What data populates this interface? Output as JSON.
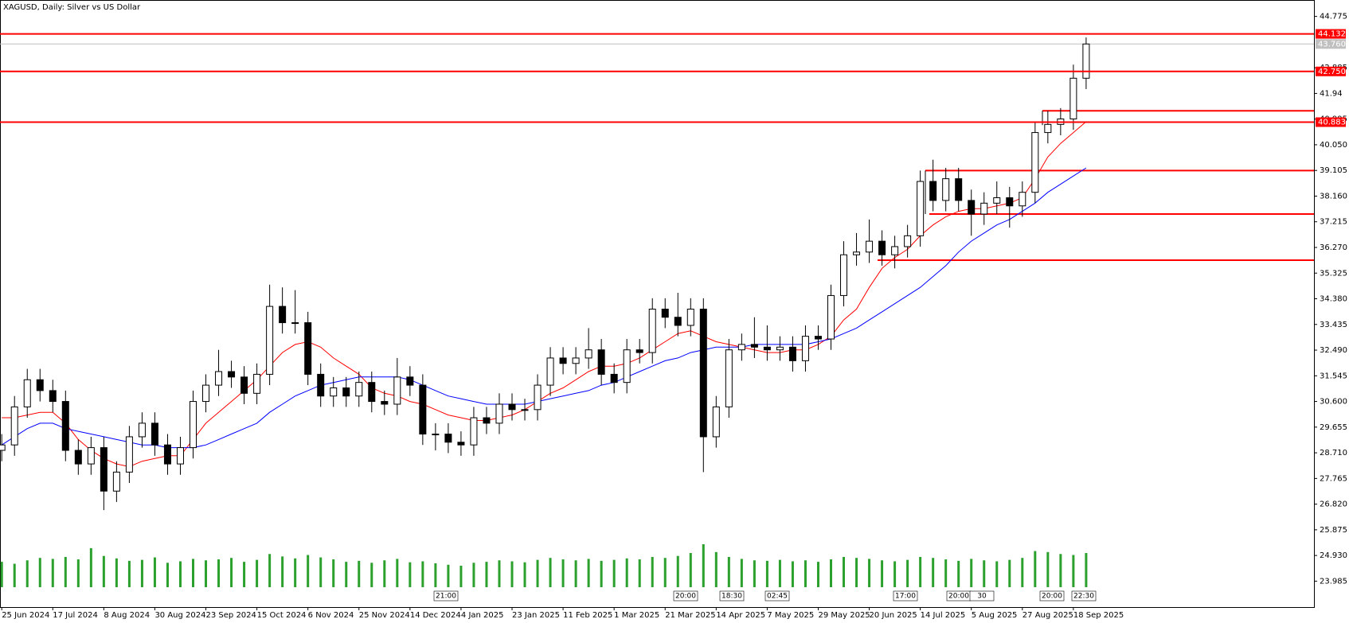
{
  "chart_data": {
    "type": "candlestick",
    "title": "XAGUSD, Daily:  Silver vs US Dollar",
    "categories": [
      "25 Jun 2024",
      null,
      null,
      null,
      "17 Jul 2024",
      null,
      null,
      null,
      "8 Aug 2024",
      null,
      null,
      null,
      "30 Aug 2024",
      null,
      null,
      null,
      "23 Sep 2024",
      null,
      null,
      null,
      "15 Oct 2024",
      null,
      null,
      null,
      "6 Nov 2024",
      null,
      null,
      null,
      "25 Nov 2024",
      null,
      null,
      null,
      "14 Dec 2024",
      null,
      null,
      null,
      "4 Jan 2025",
      null,
      null,
      null,
      "23 Jan 2025",
      null,
      null,
      null,
      "11 Feb 2025",
      null,
      null,
      null,
      "1 Mar 2025",
      null,
      null,
      null,
      "21 Mar 2025",
      null,
      null,
      null,
      "14 Apr 2025",
      null,
      null,
      null,
      "7 May 2025",
      null,
      null,
      null,
      "29 May 2025",
      null,
      null,
      null,
      "20 Jun 2025",
      null,
      null,
      null,
      "14 Jul 2025",
      null,
      null,
      null,
      "5 Aug 2025",
      null,
      null,
      null,
      "27 Aug 2025",
      null,
      null,
      null,
      "18 Sep 2025",
      null
    ],
    "open": [
      28.8,
      29.0,
      30.4,
      31.4,
      31.0,
      30.6,
      28.8,
      28.3,
      28.9,
      27.3,
      28.0,
      29.3,
      29.8,
      29.0,
      28.3,
      28.9,
      30.6,
      31.2,
      31.7,
      31.5,
      30.9,
      31.6,
      34.1,
      33.5,
      33.5,
      31.6,
      30.8,
      31.1,
      30.8,
      31.3,
      30.6,
      30.5,
      31.5,
      31.2,
      29.4,
      29.4,
      29.1,
      29.0,
      30.0,
      29.8,
      30.5,
      30.3,
      30.3,
      31.2,
      32.2,
      32.0,
      32.2,
      32.5,
      31.6,
      31.3,
      32.5,
      32.4,
      34.0,
      33.7,
      33.4,
      34.0,
      29.3,
      30.4,
      32.5,
      32.7,
      32.6,
      32.5,
      32.6,
      32.1,
      33.0,
      32.9,
      34.5,
      36.0,
      36.1,
      36.5,
      36.0,
      36.3,
      36.7,
      38.7,
      38.0,
      38.8,
      38.0,
      37.5,
      37.9,
      38.1,
      37.8,
      38.3,
      40.5,
      40.8,
      41.0,
      42.5
    ],
    "high": [
      29.4,
      30.8,
      31.8,
      31.8,
      31.4,
      31.0,
      29.2,
      29.3,
      29.3,
      28.4,
      29.7,
      30.2,
      30.2,
      29.4,
      29.3,
      31.0,
      31.6,
      32.5,
      32.1,
      31.9,
      32.0,
      34.9,
      34.8,
      34.7,
      33.9,
      32.0,
      31.5,
      31.5,
      31.7,
      31.7,
      31.0,
      32.2,
      31.9,
      31.6,
      29.8,
      29.8,
      29.5,
      30.4,
      30.4,
      30.9,
      30.9,
      30.7,
      31.6,
      32.6,
      32.6,
      32.6,
      33.3,
      32.9,
      32.0,
      32.9,
      32.9,
      34.4,
      34.4,
      34.6,
      34.4,
      34.4,
      30.8,
      32.9,
      33.1,
      33.7,
      33.4,
      33.0,
      33.0,
      33.4,
      33.4,
      34.9,
      36.5,
      36.8,
      37.3,
      36.9,
      36.7,
      37.1,
      39.1,
      39.5,
      39.2,
      39.2,
      38.4,
      38.3,
      38.7,
      38.5,
      38.7,
      40.9,
      41.3,
      41.4,
      43.0,
      44.0
    ],
    "low": [
      28.4,
      28.6,
      30.0,
      30.6,
      30.2,
      28.4,
      27.9,
      27.9,
      26.6,
      26.9,
      27.6,
      28.9,
      28.6,
      27.9,
      27.9,
      28.5,
      30.2,
      30.8,
      31.1,
      30.5,
      30.5,
      31.2,
      33.1,
      33.1,
      31.2,
      30.4,
      30.4,
      30.4,
      30.4,
      30.2,
      30.1,
      30.1,
      30.8,
      29.0,
      28.8,
      28.7,
      28.6,
      28.6,
      29.4,
      29.4,
      29.9,
      29.9,
      29.9,
      30.8,
      31.6,
      31.6,
      31.8,
      31.2,
      30.9,
      30.9,
      32.0,
      32.0,
      33.3,
      33.0,
      33.0,
      28.0,
      28.9,
      30.0,
      32.1,
      32.2,
      32.1,
      32.1,
      31.7,
      31.7,
      32.5,
      32.5,
      34.1,
      35.6,
      35.7,
      35.6,
      35.5,
      35.9,
      36.3,
      37.6,
      37.6,
      37.6,
      36.7,
      37.1,
      37.5,
      37.0,
      37.4,
      37.9,
      40.1,
      40.4,
      40.6,
      42.1
    ],
    "close": [
      29.0,
      30.4,
      31.4,
      31.0,
      30.6,
      28.8,
      28.3,
      28.9,
      27.3,
      28.0,
      29.3,
      29.8,
      29.0,
      28.3,
      28.9,
      30.6,
      31.2,
      31.7,
      31.5,
      30.9,
      31.6,
      34.1,
      33.5,
      33.5,
      31.6,
      30.8,
      31.1,
      30.8,
      31.3,
      30.6,
      30.5,
      31.5,
      31.2,
      29.4,
      29.4,
      29.1,
      29.0,
      30.0,
      29.8,
      30.5,
      30.3,
      30.3,
      31.2,
      32.2,
      32.0,
      32.2,
      32.5,
      31.6,
      31.3,
      32.5,
      32.4,
      34.0,
      33.7,
      33.4,
      34.0,
      29.3,
      30.4,
      32.5,
      32.7,
      32.6,
      32.5,
      32.6,
      32.1,
      33.0,
      32.9,
      34.5,
      36.0,
      36.1,
      36.5,
      36.0,
      36.3,
      36.7,
      38.7,
      38.0,
      38.8,
      38.0,
      37.5,
      37.9,
      38.1,
      37.8,
      38.3,
      40.5,
      40.8,
      41.0,
      42.5,
      43.76
    ],
    "volume": [
      52000,
      48000,
      55000,
      60000,
      58000,
      62000,
      57000,
      80000,
      64000,
      59000,
      54000,
      56000,
      61000,
      50000,
      53000,
      58000,
      55000,
      57000,
      60000,
      52000,
      56000,
      68000,
      63000,
      59000,
      66000,
      61000,
      57000,
      52000,
      54000,
      50000,
      55000,
      58000,
      51000,
      53000,
      49000,
      46000,
      44000,
      50000,
      52000,
      55000,
      53000,
      51000,
      56000,
      60000,
      57000,
      55000,
      58000,
      54000,
      56000,
      59000,
      57000,
      62000,
      60000,
      64000,
      70000,
      88000,
      72000,
      62000,
      58000,
      55000,
      54000,
      56000,
      53000,
      55000,
      52000,
      57000,
      62000,
      60000,
      58000,
      55000,
      53000,
      56000,
      62000,
      60000,
      57000,
      54000,
      58000,
      55000,
      53000,
      56000,
      60000,
      74000,
      72000,
      68000,
      66000,
      70000
    ],
    "volume_color": "#2ca02c",
    "moving_averages": [
      {
        "color": "#ff0000",
        "values": [
          30.0,
          30.0,
          30.1,
          30.2,
          30.2,
          29.8,
          29.2,
          28.8,
          28.5,
          28.3,
          28.2,
          28.4,
          28.5,
          28.6,
          28.6,
          29.2,
          29.8,
          30.2,
          30.6,
          31.0,
          31.4,
          31.9,
          32.4,
          32.7,
          32.8,
          32.6,
          32.2,
          31.9,
          31.6,
          31.1,
          30.9,
          30.8,
          30.6,
          30.5,
          30.3,
          30.1,
          30.0,
          29.9,
          29.9,
          30.0,
          30.1,
          30.3,
          30.6,
          30.9,
          31.1,
          31.4,
          31.7,
          31.9,
          31.9,
          32.0,
          32.2,
          32.5,
          32.8,
          33.1,
          33.2,
          33.0,
          32.8,
          32.7,
          32.6,
          32.5,
          32.4,
          32.4,
          32.5,
          32.5,
          32.7,
          33.0,
          33.6,
          34.0,
          34.8,
          35.5,
          35.9,
          36.2,
          36.7,
          37.1,
          37.4,
          37.6,
          37.7,
          37.7,
          37.8,
          37.9,
          38.1,
          38.8,
          39.6,
          40.1,
          40.5,
          40.9
        ]
      },
      {
        "color": "#0000ff",
        "values": [
          29.0,
          29.3,
          29.6,
          29.8,
          29.8,
          29.6,
          29.5,
          29.4,
          29.3,
          29.2,
          29.1,
          29.0,
          29.0,
          28.9,
          28.9,
          28.9,
          29.0,
          29.2,
          29.4,
          29.6,
          29.8,
          30.2,
          30.5,
          30.8,
          31.0,
          31.2,
          31.3,
          31.4,
          31.5,
          31.5,
          31.5,
          31.5,
          31.4,
          31.2,
          31.0,
          30.8,
          30.7,
          30.6,
          30.5,
          30.5,
          30.5,
          30.5,
          30.6,
          30.7,
          30.8,
          30.9,
          31.0,
          31.2,
          31.3,
          31.5,
          31.7,
          31.9,
          32.1,
          32.2,
          32.4,
          32.5,
          32.6,
          32.6,
          32.6,
          32.7,
          32.7,
          32.7,
          32.7,
          32.7,
          32.8,
          32.9,
          33.1,
          33.3,
          33.6,
          33.9,
          34.2,
          34.5,
          34.8,
          35.2,
          35.6,
          36.1,
          36.5,
          36.8,
          37.1,
          37.3,
          37.6,
          37.9,
          38.3,
          38.6,
          38.9,
          39.2
        ]
      }
    ],
    "ylim": [
      23.03,
      45.35
    ],
    "yticks": [
      44.775,
      42.885,
      41.94,
      40.995,
      {
        "value": 40.05,
        "label": "40.050"
      },
      39.105,
      {
        "value": 38.16,
        "label": "38.160"
      },
      37.215,
      {
        "value": 36.27,
        "label": "36.270"
      },
      35.325,
      {
        "value": 34.38,
        "label": "34.380"
      },
      33.435,
      {
        "value": 32.49,
        "label": "32.490"
      },
      31.545,
      {
        "value": 30.6,
        "label": "30.600"
      },
      29.655,
      {
        "value": 28.71,
        "label": "28.710"
      },
      27.765,
      {
        "value": 26.82,
        "label": "26.820"
      },
      25.875,
      {
        "value": 24.93,
        "label": "24.930"
      },
      23.985
    ],
    "levels": [
      44.132,
      {
        "value": 42.75,
        "label": "42.750"
      },
      40.883
    ],
    "level_color": "#ff0000",
    "zones": [
      41.3,
      39.1,
      37.5,
      35.8
    ],
    "last_price": {
      "value": 43.76,
      "label": "43.760"
    },
    "time_markers": [
      "21:00",
      "20:00",
      "18:30",
      "02:45",
      "17:00",
      "20:00",
      "30",
      "20:00",
      "22:30"
    ]
  }
}
